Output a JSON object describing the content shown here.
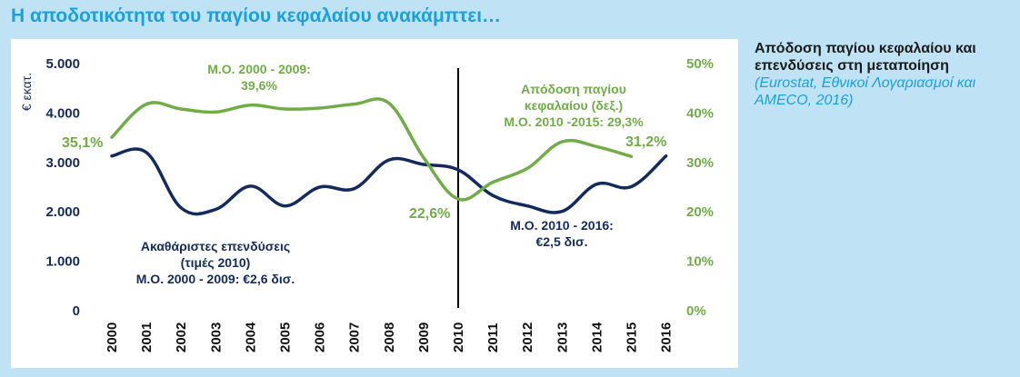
{
  "headline": "Η αποδοτικότητα του παγίου κεφαλαίου ανακάμπτει…",
  "side_note": {
    "title": "Απόδοση παγίου κεφαλαίου και επενδύσεις στη μεταποίηση",
    "source": "(Eurostat, Εθνικοί Λογαριασμοί και AMECO, 2016)"
  },
  "colors": {
    "investment": "#132a5e",
    "return": "#70ad47",
    "background": "#bfe3f5",
    "headline": "#1aa0dc"
  },
  "chart_data": {
    "type": "line",
    "x": [
      "2000",
      "2001",
      "2002",
      "2003",
      "2004",
      "2005",
      "2006",
      "2007",
      "2008",
      "2009",
      "2010",
      "2011",
      "2012",
      "2013",
      "2014",
      "2015",
      "2016"
    ],
    "ylabel_left": "€ εκατ.",
    "ylim_left": [
      0,
      5000
    ],
    "yticks_left": [
      "0",
      "1.000",
      "2.000",
      "3.000",
      "4.000",
      "5.000"
    ],
    "ylim_right": [
      0,
      50
    ],
    "yticks_right": [
      "0%",
      "10%",
      "20%",
      "30%",
      "40%",
      "50%"
    ],
    "grid": false,
    "vertical_marker_at": "2010",
    "series": [
      {
        "name": "Ακαθάριστες επενδύσεις (τιμές 2010)",
        "axis": "left",
        "values": [
          3130,
          3200,
          2080,
          2050,
          2520,
          2120,
          2500,
          2470,
          3050,
          2960,
          2850,
          2330,
          2120,
          2010,
          2560,
          2510,
          3130
        ]
      },
      {
        "name": "Απόδοση παγίου κεφαλαίου (δεξ.)",
        "axis": "right",
        "values": [
          35.1,
          41.8,
          40.8,
          40.2,
          41.6,
          40.8,
          41.0,
          41.8,
          42.0,
          31.0,
          22.6,
          26.0,
          28.8,
          34.2,
          33.2,
          31.2,
          null
        ]
      }
    ],
    "annotations": {
      "start_value": "35,1%",
      "avg_return_2000_2009": "Μ.Ο. 2000 - 2009:\n39,6%",
      "low_value": "22,6%",
      "return_label": "Απόδοση παγίου\nκεφαλαίου (δεξ.)\nΜ.Ο. 2010 -2015: 29,3%",
      "end_value": "31,2%",
      "investment_label": "Ακαθάριστες επενδύσεις\n(τιμές 2010)\nΜ.Ο. 2000 - 2009: €2,6 δισ.",
      "avg_investment_2010_2016": "Μ.Ο. 2010 - 2016:\n€2,5 δισ."
    }
  }
}
